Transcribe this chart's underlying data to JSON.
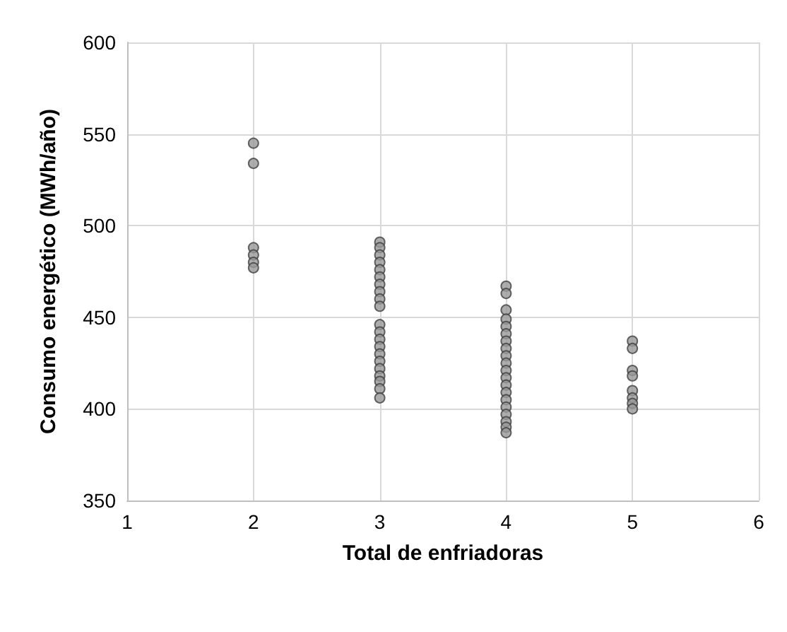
{
  "chart_data": {
    "type": "scatter",
    "xlabel": "Total de enfriadoras",
    "ylabel": "Consumo energético (MWh/año)",
    "x": [
      2,
      2,
      2,
      2,
      2,
      2,
      3,
      3,
      3,
      3,
      3,
      3,
      3,
      3,
      3,
      3,
      3,
      3,
      3,
      3,
      3,
      3,
      3,
      3,
      3,
      3,
      3,
      4,
      4,
      4,
      4,
      4,
      4,
      4,
      4,
      4,
      4,
      4,
      4,
      4,
      4,
      4,
      4,
      4,
      4,
      4,
      4,
      5,
      5,
      5,
      5,
      5,
      5,
      5,
      5
    ],
    "series": [
      {
        "color": "#999999",
        "values": [
          545,
          534,
          488,
          484,
          480,
          477,
          491,
          488,
          484,
          480,
          476,
          472,
          468,
          464,
          460,
          456,
          446,
          442,
          438,
          434,
          430,
          426,
          422,
          418,
          415,
          411,
          406,
          467,
          463,
          454,
          449,
          445,
          441,
          437,
          433,
          429,
          425,
          421,
          417,
          413,
          409,
          405,
          401,
          397,
          393,
          390,
          387,
          437,
          433,
          421,
          418,
          410,
          406,
          403,
          400
        ]
      }
    ],
    "xlim": [
      1,
      6
    ],
    "xticks": [
      1,
      2,
      3,
      4,
      5,
      6
    ],
    "ylim": [
      350,
      600
    ],
    "yticks": [
      350,
      400,
      450,
      500,
      550,
      600
    ],
    "grid": true,
    "marker": "circle"
  }
}
